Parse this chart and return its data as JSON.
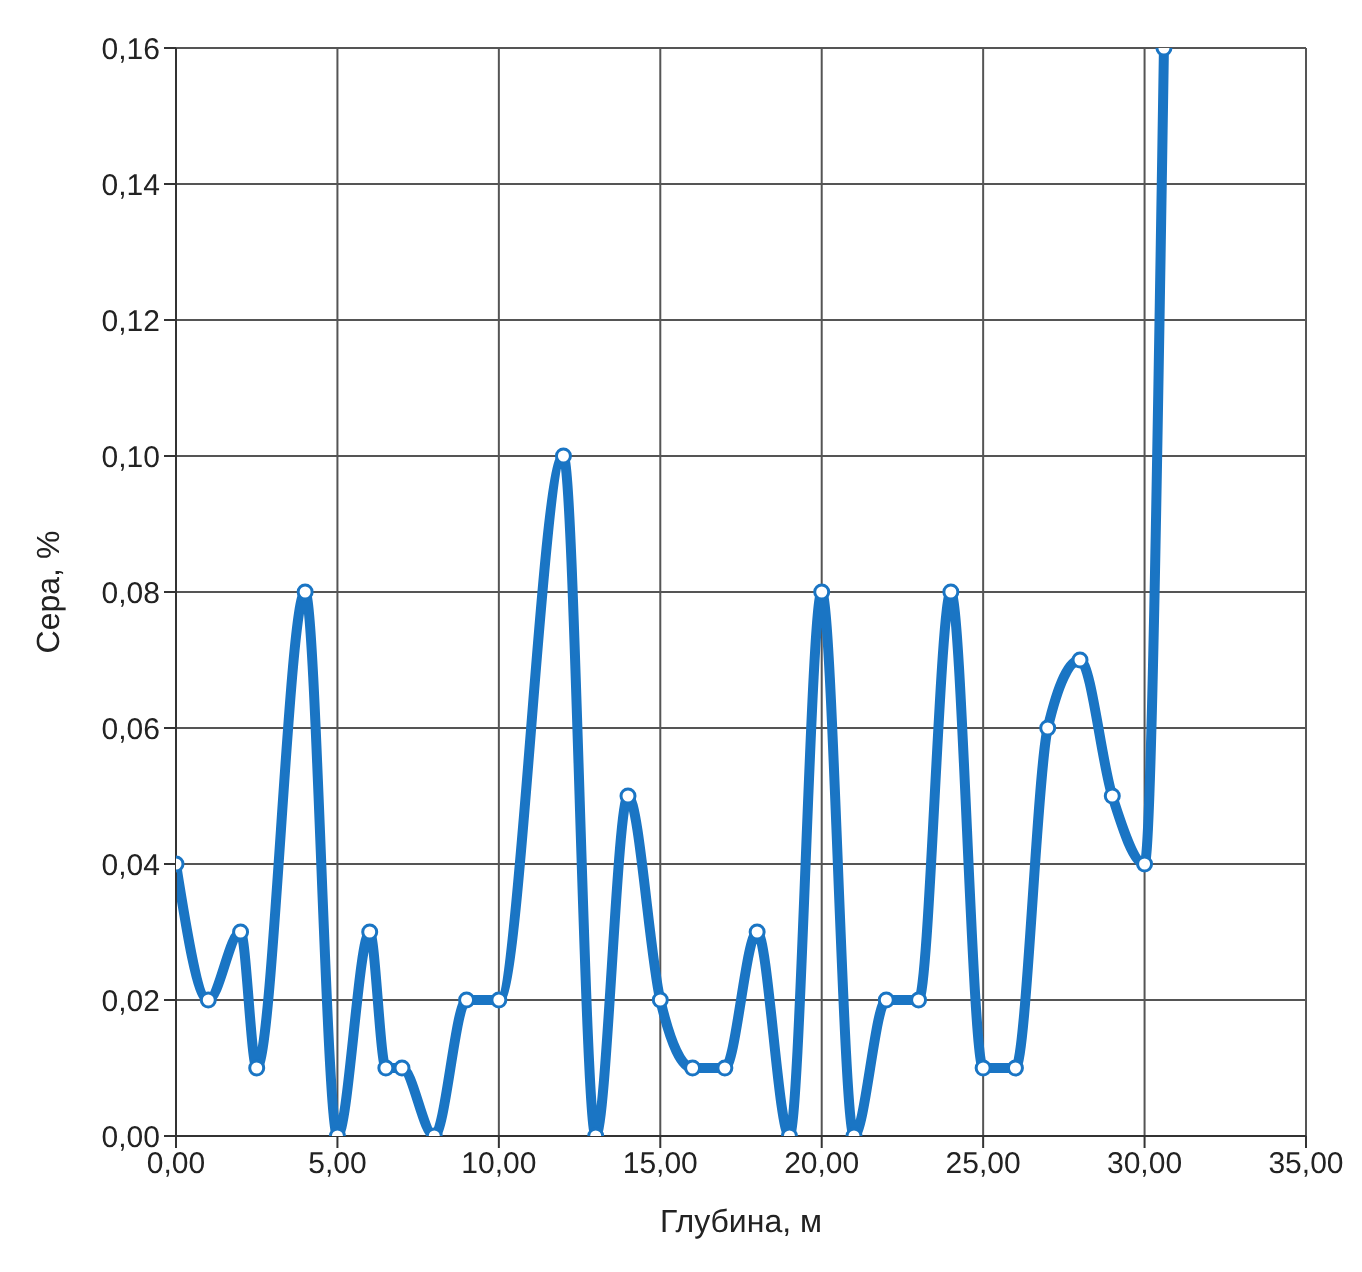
{
  "chart_data": {
    "type": "line",
    "xlabel": "Глубина, м",
    "ylabel": "Сера, %",
    "x": [
      0,
      1,
      2,
      2.5,
      4,
      5,
      6,
      6.5,
      7,
      8,
      9,
      10,
      12,
      13,
      14,
      15,
      16,
      17,
      18,
      19,
      20,
      21,
      22,
      23,
      24,
      25,
      26,
      27,
      28,
      29,
      30,
      30.6
    ],
    "series": [
      {
        "color": "#1a75c4",
        "values": [
          0.04,
          0.02,
          0.03,
          0.01,
          0.08,
          0,
          0.03,
          0.01,
          0.01,
          0,
          0.02,
          0.02,
          0.1,
          0,
          0.05,
          0.02,
          0.01,
          0.01,
          0.03,
          0,
          0.08,
          0,
          0.02,
          0.02,
          0.08,
          0.01,
          0.01,
          0.06,
          0.07,
          0.05,
          0.04,
          0.16
        ]
      }
    ],
    "xlim": [
      0,
      35
    ],
    "xticks": [
      {
        "value": 0,
        "label": "0,00"
      },
      {
        "value": 5,
        "label": "5,00"
      },
      {
        "value": 10,
        "label": "10,00"
      },
      {
        "value": 15,
        "label": "15,00"
      },
      {
        "value": 20,
        "label": "20,00"
      },
      {
        "value": 25,
        "label": "25,00"
      },
      {
        "value": 30,
        "label": "30,00"
      },
      {
        "value": 35,
        "label": "35,00"
      }
    ],
    "ylim": [
      0,
      0.16
    ],
    "yticks": [
      {
        "value": 0,
        "label": "0,00"
      },
      {
        "value": 0.02,
        "label": "0,02"
      },
      {
        "value": 0.04,
        "label": "0,04"
      },
      {
        "value": 0.06,
        "label": "0,06"
      },
      {
        "value": 0.08,
        "label": "0,08"
      },
      {
        "value": 0.1,
        "label": "0,10"
      },
      {
        "value": 0.12,
        "label": "0,12"
      },
      {
        "value": 0.14,
        "label": "0,14"
      },
      {
        "value": 0.16,
        "label": "0,16"
      }
    ],
    "grid": true,
    "marker": "circle",
    "line_style": "solid",
    "legend": false
  }
}
